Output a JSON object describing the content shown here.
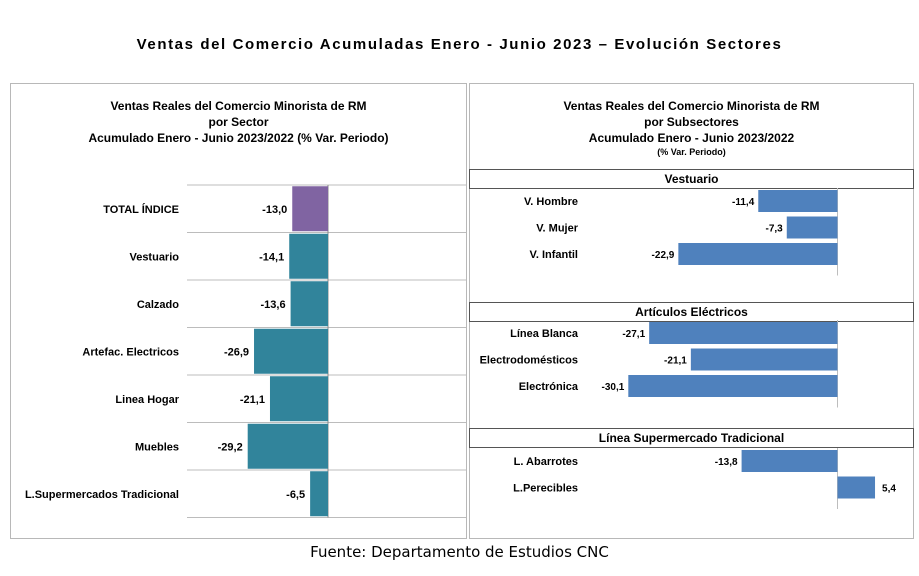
{
  "title": "Ventas del Comercio Acumuladas Enero - Junio 2023 – Evolución Sectores",
  "source": "Fuente: Departamento de Estudios CNC",
  "chart_data": [
    {
      "type": "bar",
      "orientation": "horizontal",
      "title_lines": [
        "Ventas Reales del Comercio Minorista de RM",
        "por Sector",
        "Acumulado Enero - Junio 2023/2022 (% Var. Periodo)"
      ],
      "categories": [
        "TOTAL ÍNDICE",
        "Vestuario",
        "Calzado",
        "Artefac. Electricos",
        "Linea Hogar",
        "Muebles",
        "L.Supermercados Tradicional"
      ],
      "values": [
        -13.0,
        -14.1,
        -13.6,
        -26.9,
        -21.1,
        -29.2,
        -6.5
      ],
      "value_labels": [
        "-13,0",
        "-14,1",
        "-13,6",
        "-26,9",
        "-21,1",
        "-29,2",
        "-6,5"
      ],
      "colors": [
        "#8064a2",
        "#31849b",
        "#31849b",
        "#31849b",
        "#31849b",
        "#31849b",
        "#31849b"
      ],
      "grid": true
    },
    {
      "type": "bar",
      "orientation": "horizontal",
      "title_lines": [
        "Ventas Reales del Comercio Minorista de RM",
        "por Subsectores",
        "Acumulado Enero - Junio 2023/2022"
      ],
      "subtitle": "(% Var. Periodo)",
      "color": "#4f81bd",
      "groups": [
        {
          "name": "Vestuario",
          "categories": [
            "V. Hombre",
            "V. Mujer",
            "V. Infantil"
          ],
          "values": [
            -11.4,
            -7.3,
            -22.9
          ],
          "value_labels": [
            "-11,4",
            "-7,3",
            "-22,9"
          ]
        },
        {
          "name": "Artículos Eléctricos",
          "categories": [
            "Línea Blanca",
            "Electrodomésticos",
            "Electrónica"
          ],
          "values": [
            -27.1,
            -21.1,
            -30.1
          ],
          "value_labels": [
            "-27,1",
            "-21,1",
            "-30,1"
          ]
        },
        {
          "name": "Línea  Supermercado Tradicional",
          "categories": [
            "L. Abarrotes",
            "L.Perecibles"
          ],
          "values": [
            -13.8,
            5.4
          ],
          "value_labels": [
            "-13,8",
            "5,4"
          ]
        }
      ]
    }
  ]
}
